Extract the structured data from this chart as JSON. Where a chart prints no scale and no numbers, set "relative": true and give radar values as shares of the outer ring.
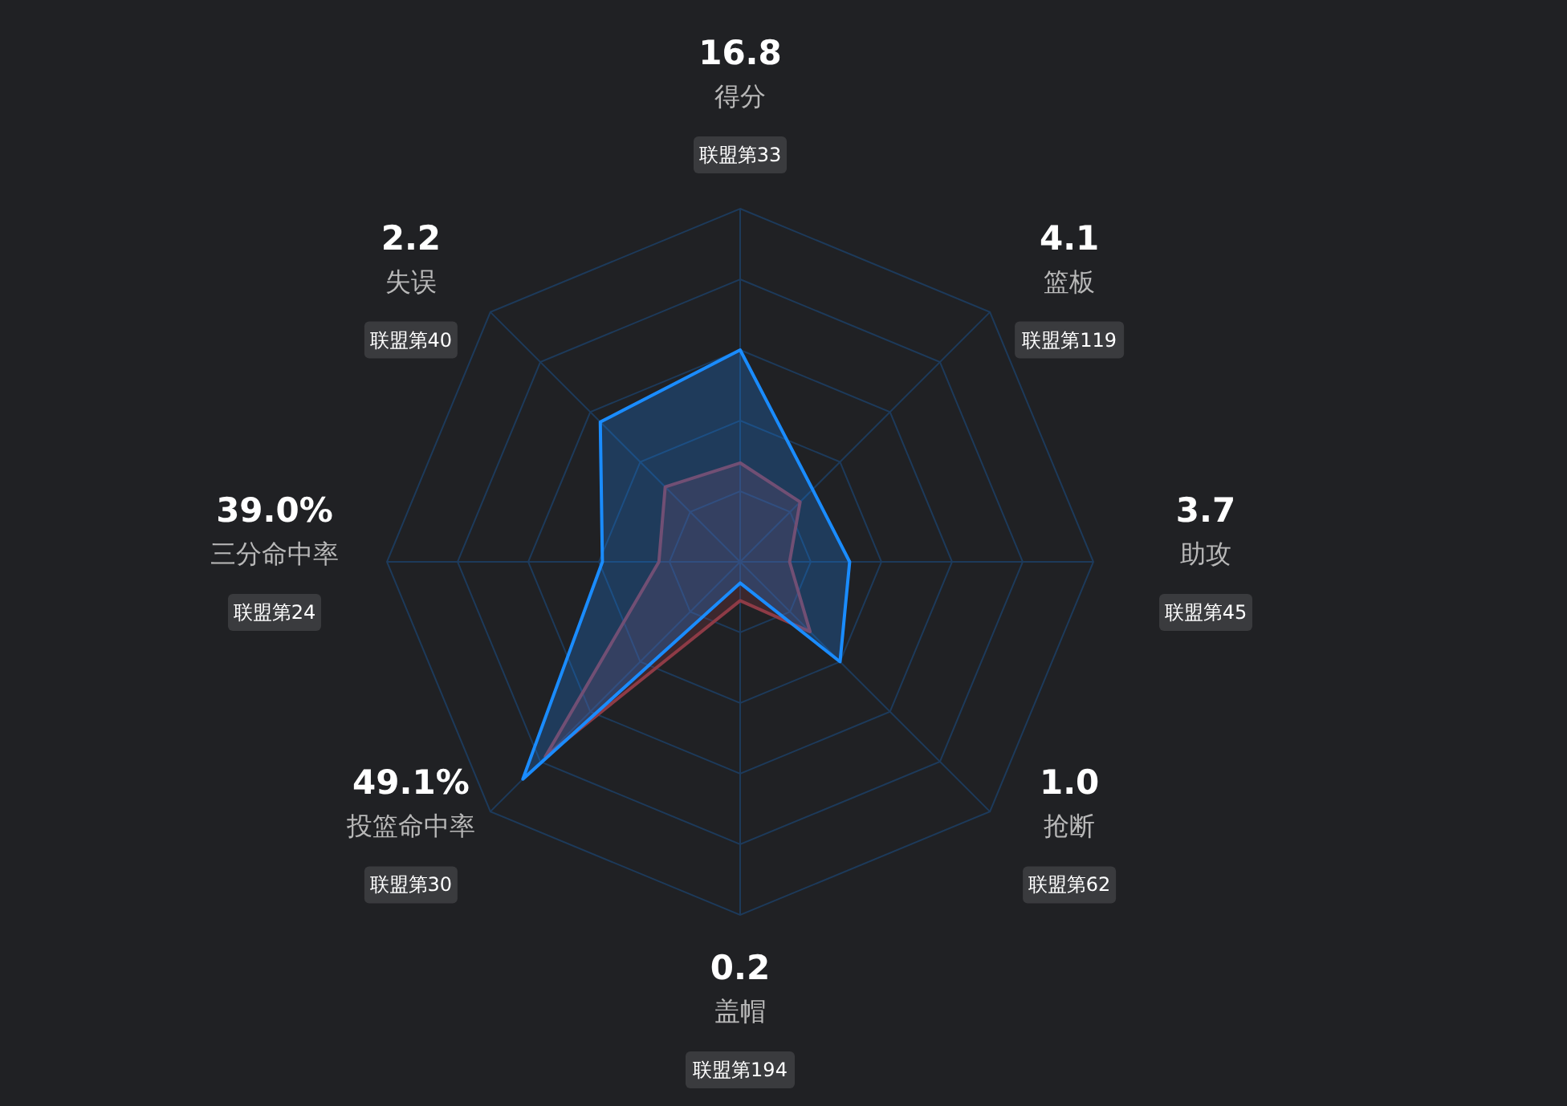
{
  "chart_data": {
    "type": "radar",
    "relative": true,
    "grid": true,
    "categories": [
      "得分",
      "篮板",
      "助攻",
      "抢断",
      "盖帽",
      "投篮命中率",
      "三分命中率",
      "失误"
    ],
    "series": [
      {
        "color": "#8e3b46",
        "values": [
          0.28,
          0.24,
          0.14,
          0.28,
          0.11,
          0.78,
          0.23,
          0.3
        ]
      },
      {
        "color": "#1a8cff",
        "values": [
          0.6,
          0.29,
          0.31,
          0.4,
          0.06,
          0.87,
          0.39,
          0.56
        ]
      }
    ],
    "annotations": [
      "16.8",
      "联盟第33",
      "4.1",
      "联盟第119",
      "3.7",
      "联盟第45",
      "1.0",
      "联盟第62",
      "0.2",
      "联盟第194",
      "49.1%",
      "联盟第30",
      "39.0%",
      "联盟第24",
      "2.2",
      "联盟第40"
    ]
  }
}
